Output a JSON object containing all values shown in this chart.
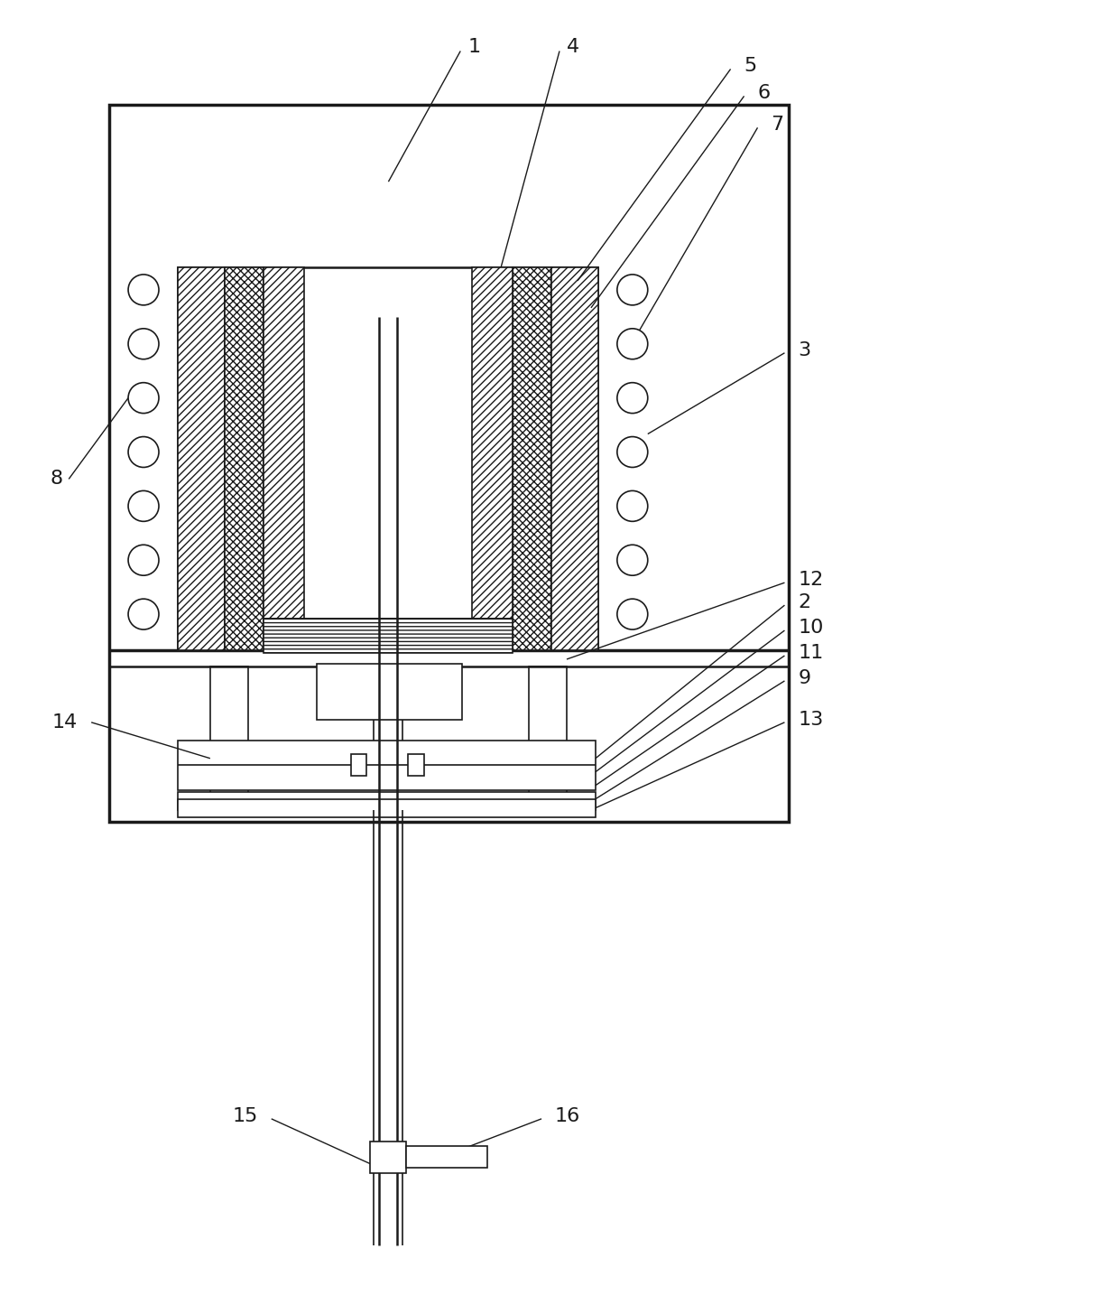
{
  "bg_color": "#ffffff",
  "line_color": "#1a1a1a",
  "fig_width": 12.4,
  "fig_height": 14.55,
  "label_fontsize": 16
}
